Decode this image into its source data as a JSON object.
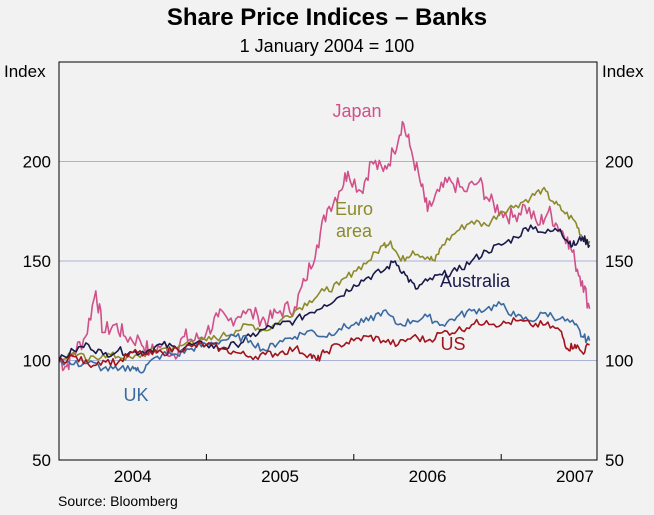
{
  "chart_data": {
    "type": "line",
    "title": "Share Price Indices – Banks",
    "subtitle": "1 January 2004 = 100",
    "ylabel_left": "Index",
    "ylabel_right": "Index",
    "ylim": [
      50,
      250
    ],
    "yticks": [
      50,
      100,
      150,
      200
    ],
    "x_range": [
      2004.0,
      2007.65
    ],
    "x_tick_labels": [
      {
        "label": "2004",
        "at": 2004.5
      },
      {
        "label": "2005",
        "at": 2005.5
      },
      {
        "label": "2006",
        "at": 2006.5
      },
      {
        "label": "2007",
        "at": 2007.5
      }
    ],
    "x_year_boundaries": [
      2005.0,
      2006.0,
      2007.0
    ],
    "source": "Source: Bloomberg",
    "colors": {
      "Japan": "#d0508a",
      "Euro area": "#8c8a2a",
      "Australia": "#1a1a4a",
      "UK": "#3b6aa0",
      "US": "#a0141e",
      "grid": "#a9b3d6",
      "plot_bg": "#f2f2f2"
    },
    "series": [
      {
        "name": "Japan",
        "label": "Japan",
        "points": [
          [
            2004.0,
            100
          ],
          [
            2004.05,
            97
          ],
          [
            2004.1,
            104
          ],
          [
            2004.18,
            112
          ],
          [
            2004.25,
            135
          ],
          [
            2004.3,
            114
          ],
          [
            2004.38,
            118
          ],
          [
            2004.45,
            112
          ],
          [
            2004.55,
            110
          ],
          [
            2004.62,
            104
          ],
          [
            2004.7,
            108
          ],
          [
            2004.78,
            103
          ],
          [
            2004.85,
            112
          ],
          [
            2004.92,
            110
          ],
          [
            2005.0,
            114
          ],
          [
            2005.08,
            122
          ],
          [
            2005.15,
            120
          ],
          [
            2005.25,
            125
          ],
          [
            2005.35,
            122
          ],
          [
            2005.42,
            120
          ],
          [
            2005.5,
            125
          ],
          [
            2005.6,
            127
          ],
          [
            2005.67,
            140
          ],
          [
            2005.75,
            158
          ],
          [
            2005.82,
            176
          ],
          [
            2005.9,
            185
          ],
          [
            2005.96,
            195
          ],
          [
            2006.05,
            185
          ],
          [
            2006.12,
            200
          ],
          [
            2006.2,
            195
          ],
          [
            2006.27,
            205
          ],
          [
            2006.33,
            220
          ],
          [
            2006.38,
            208
          ],
          [
            2006.45,
            190
          ],
          [
            2006.5,
            175
          ],
          [
            2006.58,
            185
          ],
          [
            2006.66,
            190
          ],
          [
            2006.75,
            185
          ],
          [
            2006.85,
            190
          ],
          [
            2006.92,
            180
          ],
          [
            2007.0,
            175
          ],
          [
            2007.08,
            172
          ],
          [
            2007.16,
            178
          ],
          [
            2007.25,
            168
          ],
          [
            2007.32,
            175
          ],
          [
            2007.38,
            168
          ],
          [
            2007.45,
            162
          ],
          [
            2007.5,
            150
          ],
          [
            2007.55,
            140
          ],
          [
            2007.6,
            126
          ]
        ]
      },
      {
        "name": "Euro area",
        "label": "Euro\narea",
        "points": [
          [
            2004.0,
            100
          ],
          [
            2004.1,
            104
          ],
          [
            2004.2,
            100
          ],
          [
            2004.3,
            103
          ],
          [
            2004.4,
            102
          ],
          [
            2004.5,
            101
          ],
          [
            2004.6,
            104
          ],
          [
            2004.7,
            106
          ],
          [
            2004.8,
            106
          ],
          [
            2004.9,
            110
          ],
          [
            2005.0,
            110
          ],
          [
            2005.1,
            112
          ],
          [
            2005.2,
            115
          ],
          [
            2005.3,
            118
          ],
          [
            2005.4,
            115
          ],
          [
            2005.5,
            120
          ],
          [
            2005.6,
            125
          ],
          [
            2005.7,
            130
          ],
          [
            2005.8,
            135
          ],
          [
            2005.9,
            138
          ],
          [
            2006.0,
            145
          ],
          [
            2006.1,
            150
          ],
          [
            2006.2,
            158
          ],
          [
            2006.25,
            160
          ],
          [
            2006.32,
            150
          ],
          [
            2006.4,
            155
          ],
          [
            2006.5,
            152
          ],
          [
            2006.55,
            150
          ],
          [
            2006.6,
            158
          ],
          [
            2006.7,
            165
          ],
          [
            2006.8,
            170
          ],
          [
            2006.9,
            168
          ],
          [
            2007.0,
            175
          ],
          [
            2007.1,
            178
          ],
          [
            2007.2,
            182
          ],
          [
            2007.28,
            186
          ],
          [
            2007.35,
            180
          ],
          [
            2007.42,
            175
          ],
          [
            2007.5,
            170
          ],
          [
            2007.55,
            162
          ],
          [
            2007.6,
            160
          ]
        ]
      },
      {
        "name": "Australia",
        "label": "Australia",
        "points": [
          [
            2004.0,
            100
          ],
          [
            2004.1,
            105
          ],
          [
            2004.2,
            108
          ],
          [
            2004.3,
            103
          ],
          [
            2004.4,
            105
          ],
          [
            2004.5,
            104
          ],
          [
            2004.6,
            105
          ],
          [
            2004.7,
            108
          ],
          [
            2004.8,
            106
          ],
          [
            2004.9,
            108
          ],
          [
            2005.0,
            108
          ],
          [
            2005.1,
            106
          ],
          [
            2005.2,
            108
          ],
          [
            2005.3,
            112
          ],
          [
            2005.4,
            116
          ],
          [
            2005.5,
            118
          ],
          [
            2005.6,
            120
          ],
          [
            2005.7,
            124
          ],
          [
            2005.8,
            128
          ],
          [
            2005.9,
            132
          ],
          [
            2006.0,
            138
          ],
          [
            2006.1,
            142
          ],
          [
            2006.2,
            145
          ],
          [
            2006.28,
            150
          ],
          [
            2006.35,
            143
          ],
          [
            2006.42,
            136
          ],
          [
            2006.5,
            140
          ],
          [
            2006.6,
            143
          ],
          [
            2006.7,
            145
          ],
          [
            2006.8,
            150
          ],
          [
            2006.9,
            155
          ],
          [
            2007.0,
            158
          ],
          [
            2007.1,
            162
          ],
          [
            2007.2,
            168
          ],
          [
            2007.3,
            164
          ],
          [
            2007.4,
            166
          ],
          [
            2007.45,
            160
          ],
          [
            2007.5,
            158
          ],
          [
            2007.55,
            162
          ],
          [
            2007.6,
            158
          ]
        ]
      },
      {
        "name": "UK",
        "label": "UK",
        "points": [
          [
            2004.0,
            100
          ],
          [
            2004.1,
            98
          ],
          [
            2004.2,
            99
          ],
          [
            2004.3,
            96
          ],
          [
            2004.4,
            95
          ],
          [
            2004.5,
            97
          ],
          [
            2004.55,
            94
          ],
          [
            2004.6,
            98
          ],
          [
            2004.7,
            103
          ],
          [
            2004.8,
            103
          ],
          [
            2004.9,
            106
          ],
          [
            2005.0,
            108
          ],
          [
            2005.1,
            110
          ],
          [
            2005.2,
            112
          ],
          [
            2005.3,
            110
          ],
          [
            2005.4,
            105
          ],
          [
            2005.5,
            110
          ],
          [
            2005.6,
            112
          ],
          [
            2005.7,
            115
          ],
          [
            2005.8,
            112
          ],
          [
            2005.9,
            116
          ],
          [
            2006.0,
            118
          ],
          [
            2006.1,
            120
          ],
          [
            2006.2,
            125
          ],
          [
            2006.3,
            118
          ],
          [
            2006.4,
            120
          ],
          [
            2006.5,
            122
          ],
          [
            2006.6,
            118
          ],
          [
            2006.7,
            122
          ],
          [
            2006.8,
            125
          ],
          [
            2006.9,
            126
          ],
          [
            2007.0,
            128
          ],
          [
            2007.1,
            122
          ],
          [
            2007.2,
            120
          ],
          [
            2007.3,
            124
          ],
          [
            2007.4,
            121
          ],
          [
            2007.5,
            118
          ],
          [
            2007.55,
            112
          ],
          [
            2007.6,
            110
          ]
        ]
      },
      {
        "name": "US",
        "label": "US",
        "points": [
          [
            2004.0,
            100
          ],
          [
            2004.1,
            102
          ],
          [
            2004.2,
            98
          ],
          [
            2004.3,
            100
          ],
          [
            2004.4,
            99
          ],
          [
            2004.5,
            104
          ],
          [
            2004.6,
            103
          ],
          [
            2004.7,
            104
          ],
          [
            2004.8,
            106
          ],
          [
            2004.9,
            107
          ],
          [
            2005.0,
            108
          ],
          [
            2005.1,
            106
          ],
          [
            2005.2,
            104
          ],
          [
            2005.3,
            102
          ],
          [
            2005.4,
            103
          ],
          [
            2005.5,
            104
          ],
          [
            2005.6,
            106
          ],
          [
            2005.7,
            103
          ],
          [
            2005.75,
            100
          ],
          [
            2005.8,
            104
          ],
          [
            2005.9,
            108
          ],
          [
            2006.0,
            110
          ],
          [
            2006.1,
            112
          ],
          [
            2006.2,
            110
          ],
          [
            2006.3,
            108
          ],
          [
            2006.4,
            112
          ],
          [
            2006.5,
            110
          ],
          [
            2006.6,
            114
          ],
          [
            2006.7,
            115
          ],
          [
            2006.8,
            118
          ],
          [
            2006.9,
            120
          ],
          [
            2007.0,
            118
          ],
          [
            2007.1,
            120
          ],
          [
            2007.2,
            118
          ],
          [
            2007.3,
            118
          ],
          [
            2007.4,
            115
          ],
          [
            2007.45,
            106
          ],
          [
            2007.5,
            108
          ],
          [
            2007.55,
            104
          ],
          [
            2007.6,
            108
          ]
        ]
      }
    ]
  }
}
